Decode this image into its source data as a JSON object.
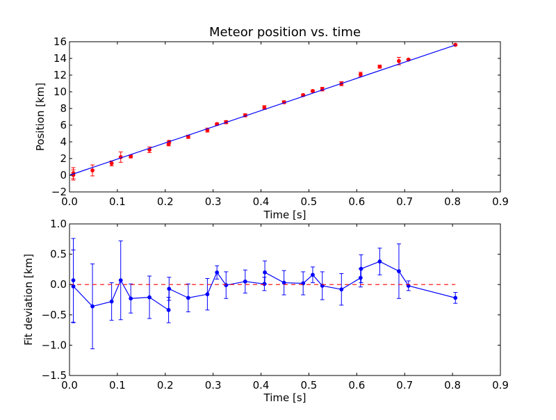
{
  "chart_data": [
    {
      "type": "scatter",
      "title": "Meteor position vs. time",
      "xlabel": "Time [s]",
      "ylabel": "Position [km]",
      "xlim": [
        0.0,
        0.9
      ],
      "ylim": [
        -2,
        16
      ],
      "xticks": [
        "0.0",
        "0.1",
        "0.2",
        "0.3",
        "0.4",
        "0.5",
        "0.6",
        "0.7",
        "0.8",
        "0.9"
      ],
      "yticks": [
        "−2",
        "0",
        "2",
        "4",
        "6",
        "8",
        "10",
        "12",
        "14",
        "16"
      ],
      "grid": false,
      "series": [
        {
          "type": "scatter_errorbar",
          "color": "#ff0000",
          "x": [
            0.008,
            0.008,
            0.048,
            0.088,
            0.107,
            0.128,
            0.167,
            0.207,
            0.208,
            0.248,
            0.288,
            0.308,
            0.327,
            0.367,
            0.407,
            0.448,
            0.488,
            0.508,
            0.528,
            0.568,
            0.608,
            0.648,
            0.688,
            0.708,
            0.806
          ],
          "y": [
            0.25,
            0.03,
            0.58,
            1.42,
            2.17,
            2.25,
            3.05,
            3.73,
            4.0,
            4.61,
            5.41,
            6.13,
            6.36,
            7.18,
            8.11,
            8.75,
            9.6,
            10.09,
            10.32,
            10.97,
            12.08,
            13.01,
            13.68,
            13.86,
            15.63
          ],
          "err": [
            0.66,
            0.61,
            0.66,
            0.3,
            0.62,
            0.18,
            0.34,
            0.21,
            0.16,
            0.2,
            0.24,
            0.13,
            0.19,
            0.18,
            0.23,
            0.17,
            0.13,
            0.12,
            0.22,
            0.24,
            0.26,
            0.18,
            0.45,
            0.07,
            0.09
          ]
        },
        {
          "type": "line",
          "color": "#0000ff",
          "x": [
            0.0,
            0.806
          ],
          "y": [
            0.0,
            15.6
          ]
        }
      ]
    },
    {
      "type": "line",
      "xlabel": "Time [s]",
      "ylabel": "Fit deviation [km]",
      "xlim": [
        0.0,
        0.9
      ],
      "ylim": [
        -1.5,
        1.0
      ],
      "xticks": [
        "0.0",
        "0.1",
        "0.2",
        "0.3",
        "0.4",
        "0.5",
        "0.6",
        "0.7",
        "0.8",
        "0.9"
      ],
      "yticks": [
        "−1.5",
        "−1.0",
        "−0.5",
        "0.0",
        "0.5",
        "1.0"
      ],
      "grid": false,
      "series": [
        {
          "type": "line_errorbar",
          "color": "#0000ff",
          "x": [
            0.008,
            0.008,
            0.048,
            0.088,
            0.107,
            0.128,
            0.167,
            0.207,
            0.208,
            0.248,
            0.288,
            0.308,
            0.327,
            0.367,
            0.407,
            0.408,
            0.448,
            0.488,
            0.508,
            0.528,
            0.568,
            0.608,
            0.609,
            0.648,
            0.688,
            0.708,
            0.806
          ],
          "y": [
            0.07,
            -0.03,
            -0.36,
            -0.28,
            0.07,
            -0.23,
            -0.21,
            -0.42,
            -0.07,
            -0.22,
            -0.16,
            0.2,
            -0.01,
            0.05,
            0.01,
            0.2,
            0.03,
            0.02,
            0.16,
            -0.02,
            -0.08,
            0.11,
            0.26,
            0.38,
            0.22,
            -0.02,
            -0.22
          ],
          "err": [
            0.69,
            0.6,
            0.7,
            0.31,
            0.65,
            0.24,
            0.35,
            0.21,
            0.19,
            0.23,
            0.26,
            0.11,
            0.22,
            0.19,
            0.11,
            0.19,
            0.2,
            0.19,
            0.13,
            0.23,
            0.26,
            0.15,
            0.23,
            0.22,
            0.45,
            0.08,
            0.09
          ]
        },
        {
          "type": "dashed_line",
          "color": "#ff0000",
          "x": [
            0.0,
            0.806
          ],
          "y": [
            0.0,
            0.0
          ]
        }
      ]
    }
  ]
}
